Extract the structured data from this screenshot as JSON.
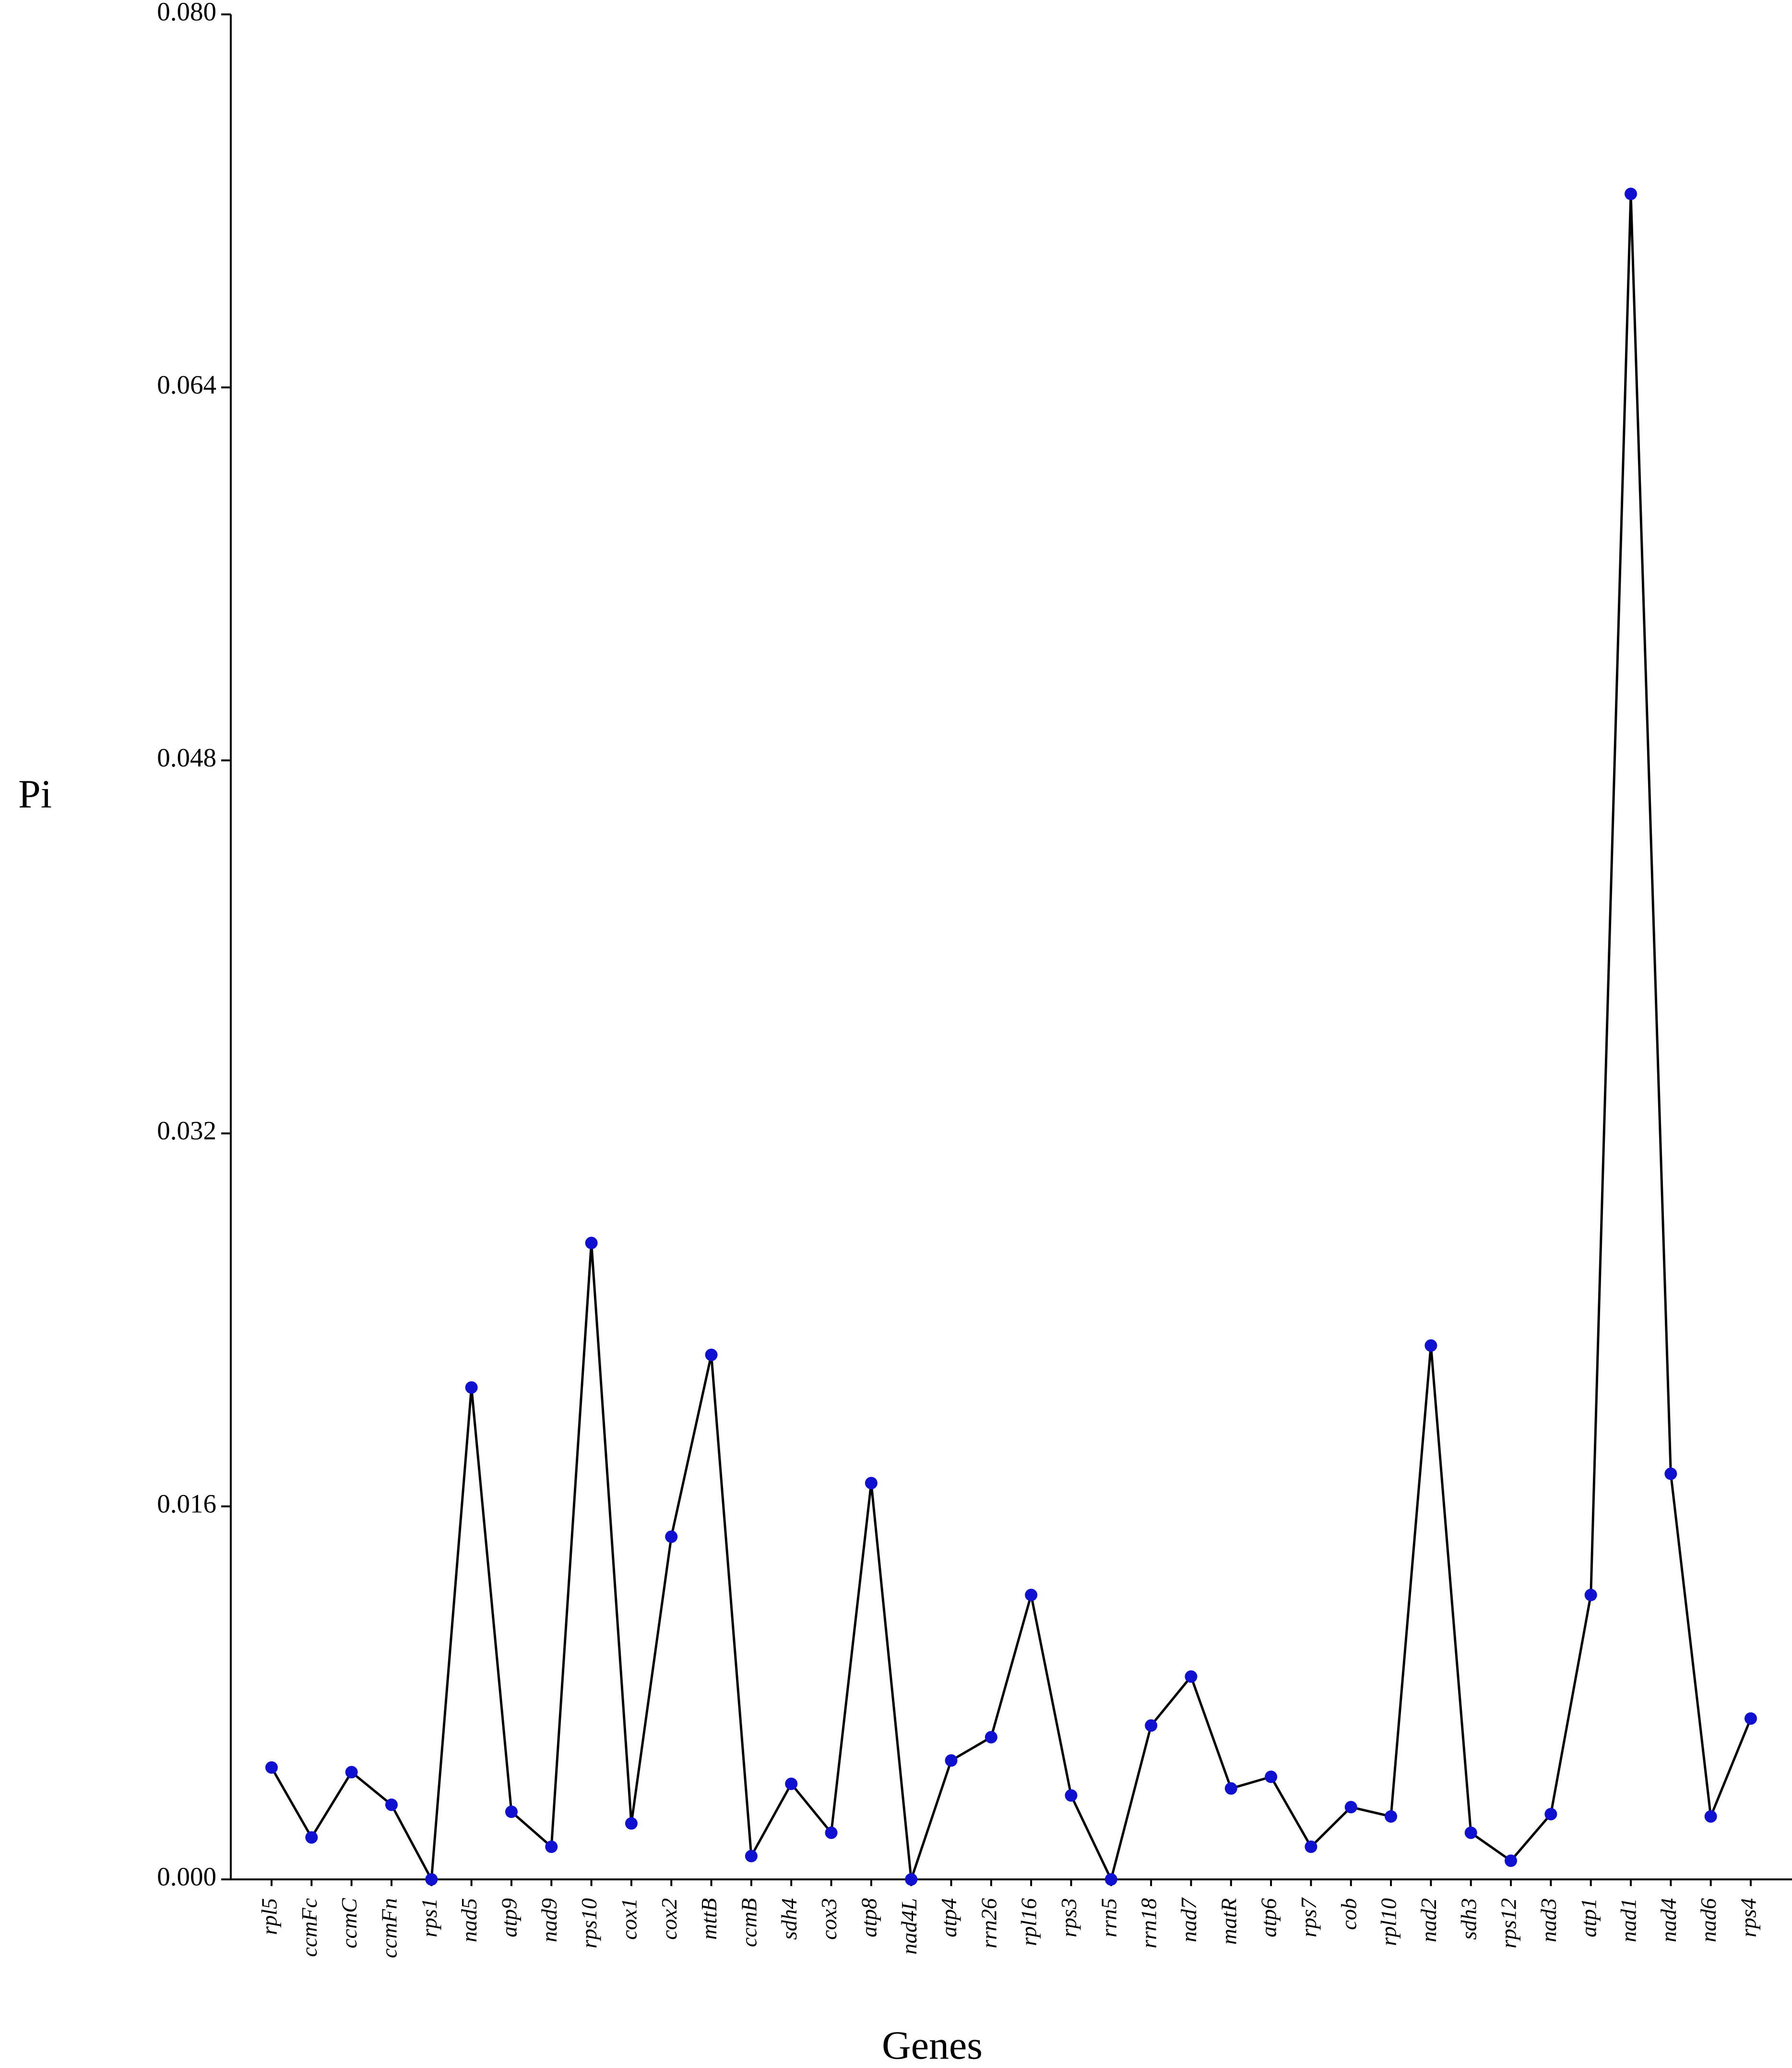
{
  "chart_data": {
    "type": "line",
    "x_label": "Genes",
    "y_label": "Pi",
    "categories": [
      "rpl5",
      "ccmFc",
      "ccmC",
      "ccmFn",
      "rps1",
      "nad5",
      "atp9",
      "nad9",
      "rps10",
      "cox1",
      "cox2",
      "mttB",
      "ccmB",
      "sdh4",
      "cox3",
      "atp8",
      "nad4L",
      "atp4",
      "rrn26",
      "rpl16",
      "rps3",
      "rrn5",
      "rrn18",
      "nad7",
      "matR",
      "atp6",
      "rps7",
      "cob",
      "rpl10",
      "nad2",
      "sdh3",
      "rps12",
      "nad3",
      "atp1",
      "nad1",
      "nad4",
      "nad6",
      "rps4"
    ],
    "series": [
      {
        "name": "Pi",
        "color": "#1010d0",
        "line_color": "#000000",
        "values": [
          0.0048,
          0.0018,
          0.0046,
          0.0032,
          0.0,
          0.0211,
          0.0029,
          0.0014,
          0.0273,
          0.0024,
          0.0147,
          0.0225,
          0.001,
          0.0041,
          0.002,
          0.017,
          0.0,
          0.0051,
          0.0061,
          0.0122,
          0.0036,
          0.0,
          0.0066,
          0.0087,
          0.0039,
          0.0044,
          0.0014,
          0.0031,
          0.0027,
          0.0229,
          0.002,
          0.0008,
          0.0028,
          0.0122,
          0.0723,
          0.0174,
          0.0027,
          0.0069
        ]
      }
    ],
    "ylim": [
      0,
      0.08
    ],
    "yticks": [
      {
        "value": 0,
        "label": "0.000"
      },
      0.016,
      0.032,
      0.048,
      0.064,
      {
        "value": 0.08,
        "label": "0.080"
      }
    ],
    "grid": false
  }
}
